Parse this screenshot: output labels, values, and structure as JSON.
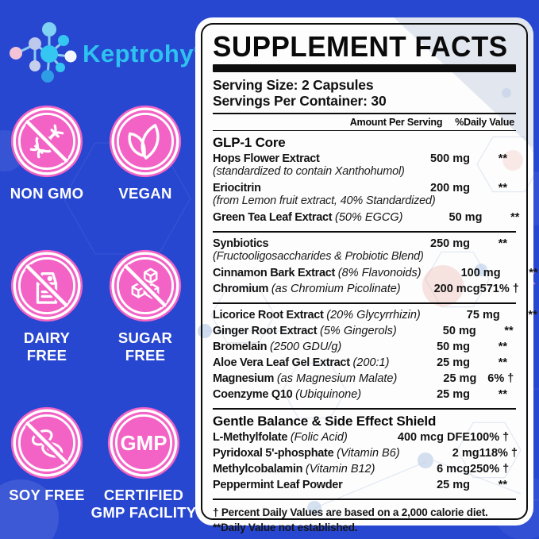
{
  "colors": {
    "background_blue": "#2847d1",
    "badge_pink": "#f263c5",
    "logo_cyan": "#2ec2f0",
    "label_black": "#0d0d0d"
  },
  "logo": {
    "brand": "Keptrohy",
    "registered_mark": "®",
    "icon": "molecule-icon"
  },
  "badges": [
    {
      "icon": "dna-slash-icon",
      "label": "NON GMO"
    },
    {
      "icon": "leaf-icon",
      "label": "VEGAN"
    },
    {
      "icon": "milk-carton-slash-icon",
      "label": "DAIRY\nFREE"
    },
    {
      "icon": "sugar-cubes-slash-icon",
      "label": "SUGAR\nFREE"
    },
    {
      "icon": "soy-beans-slash-icon",
      "label": "SOY FREE"
    },
    {
      "icon": "gmp-seal-icon",
      "label": "CERTIFIED\nGMP FACILITY"
    }
  ],
  "panel": {
    "title": "SUPPLEMENT FACTS",
    "serving_size": "Serving Size: 2 Capsules",
    "servings_per_container": "Servings Per Container: 30",
    "columns": {
      "amount": "Amount Per Serving",
      "daily_value": "%Daily Value"
    },
    "sections": [
      {
        "header": "GLP-1 Core",
        "rows": [
          {
            "name": "Hops Flower Extract",
            "sub": "(standardized to contain Xanthohumol)",
            "amount": "500 mg",
            "dv": "**"
          },
          {
            "name": "Eriocitrin",
            "sub": "(from Lemon fruit extract, 40% Standardized)",
            "amount": "200 mg",
            "dv": "**"
          },
          {
            "name": "Green Tea Leaf Extract",
            "note": "(50% EGCG)",
            "amount": "50 mg",
            "dv": "**"
          }
        ]
      },
      {
        "header": "",
        "rows": [
          {
            "name": "Synbiotics",
            "sub": "(Fructooligosaccharides & Probiotic Blend)",
            "amount": "250 mg",
            "dv": "**"
          },
          {
            "name": "Cinnamon Bark Extract",
            "note": "(8% Flavonoids)",
            "amount": "100 mg",
            "dv": "**"
          },
          {
            "name": "Chromium",
            "note": "(as Chromium Picolinate)",
            "amount": "200 mcg",
            "dv": "571% †"
          }
        ]
      },
      {
        "header": "",
        "rows": [
          {
            "name": "Licorice Root Extract",
            "note": "(20% Glycyrrhizin)",
            "amount": "75 mg",
            "dv": "**"
          },
          {
            "name": "Ginger Root Extract",
            "note": "(5% Gingerols)",
            "amount": "50 mg",
            "dv": "**"
          },
          {
            "name": "Bromelain",
            "note": "(2500 GDU/g)",
            "amount": "50 mg",
            "dv": "**"
          },
          {
            "name": "Aloe Vera Leaf Gel Extract",
            "note": "(200:1)",
            "amount": "25 mg",
            "dv": "**"
          },
          {
            "name": "Magnesium",
            "note": "(as Magnesium Malate)",
            "amount": "25 mg",
            "dv": "6% †"
          },
          {
            "name": "Coenzyme Q10",
            "note": "(Ubiquinone)",
            "amount": "25 mg",
            "dv": "**"
          }
        ]
      },
      {
        "header": "Gentle Balance & Side Effect Shield",
        "rows": [
          {
            "name": "L-Methylfolate",
            "note": "(Folic Acid)",
            "amount": "400 mcg DFE",
            "dv": "100% †"
          },
          {
            "name": "Pyridoxal 5'-phosphate",
            "note": "(Vitamin B6)",
            "amount": "2 mg",
            "dv": "118% †"
          },
          {
            "name": "Methylcobalamin",
            "note": "(Vitamin B12)",
            "amount": "6 mcg",
            "dv": "250% †"
          },
          {
            "name": "Peppermint Leaf Powder",
            "amount": "25 mg",
            "dv": "**"
          }
        ]
      }
    ],
    "footnotes": [
      "† Percent Daily Values are based on a 2,000 calorie diet.",
      "**Daily Value not established."
    ]
  }
}
